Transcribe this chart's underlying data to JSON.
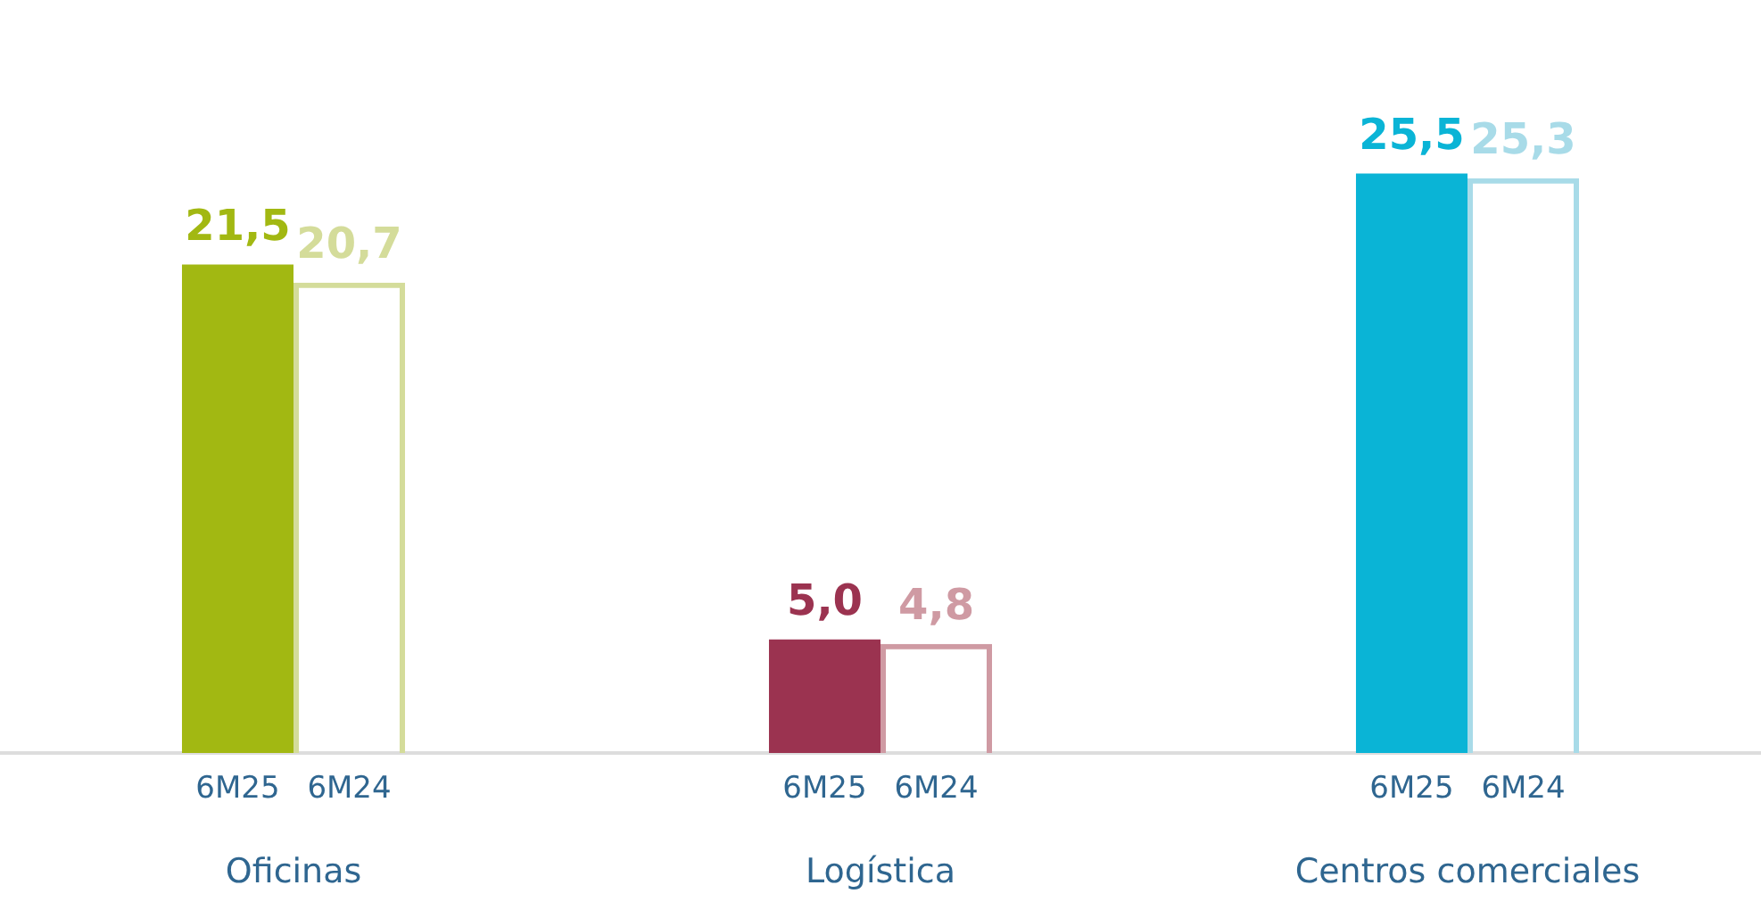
{
  "chart_data": {
    "type": "bar",
    "categories": [
      "Oficinas",
      "Logística",
      "Centros comerciales"
    ],
    "series": [
      {
        "name": "6M25",
        "colors": [
          "#a2b812",
          "#9b3350",
          "#0ab4d6"
        ],
        "values": [
          21.5,
          5.0,
          25.5
        ],
        "value_labels": [
          "21,5",
          "5,0",
          "25,5"
        ]
      },
      {
        "name": "6M24",
        "colors": [
          "#d4dc9a",
          "#cf9aa3",
          "#a8dbe8"
        ],
        "values": [
          20.7,
          4.8,
          25.3
        ],
        "value_labels": [
          "20,7",
          "4,8",
          "25,3"
        ]
      }
    ],
    "grid": false,
    "legend": false
  }
}
